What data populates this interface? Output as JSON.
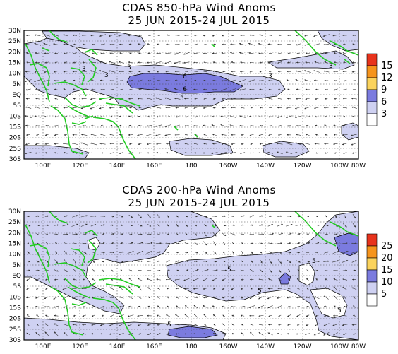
{
  "panels": [
    {
      "title_line1": "CDAS 850-hPa Wind Anoms",
      "title_line2": "25 JUN 2015-24 JUL 2015",
      "contour_labels": [
        "3",
        "3",
        "3",
        "6",
        "6",
        "3",
        "3",
        "3"
      ],
      "colorbar": {
        "labels": [
          "15",
          "12",
          "9",
          "6",
          "3"
        ],
        "colors": [
          "#e8331c",
          "#f6941c",
          "#fbd35c",
          "#7b7bdf",
          "#cfd1f2",
          "#ffffff"
        ]
      },
      "shade_colors": {
        "low": "#cfd1f2",
        "high": "#7b7bdf"
      }
    },
    {
      "title_line1": "CDAS 200-hPa Wind Anoms",
      "title_line2": "25 JUN 2015-24 JUL 2015",
      "contour_labels": [
        "5",
        "5",
        "5",
        "5",
        "5"
      ],
      "colorbar": {
        "labels": [
          "25",
          "20",
          "15",
          "10",
          "5"
        ],
        "colors": [
          "#e8331c",
          "#f6941c",
          "#fbd35c",
          "#7b7bdf",
          "#cfd1f2",
          "#ffffff"
        ]
      },
      "shade_colors": {
        "low": "#cfd1f2",
        "high": "#7b7bdf"
      }
    }
  ],
  "lat_labels": [
    "30N",
    "25N",
    "20N",
    "15N",
    "10N",
    "5N",
    "EQ",
    "5S",
    "10S",
    "15S",
    "20S",
    "25S",
    "30S"
  ],
  "lon_labels": [
    "100E",
    "120E",
    "140E",
    "160E",
    "180",
    "160W",
    "140W",
    "120W",
    "100W",
    "80W"
  ],
  "coast_color": "#22cc22"
}
